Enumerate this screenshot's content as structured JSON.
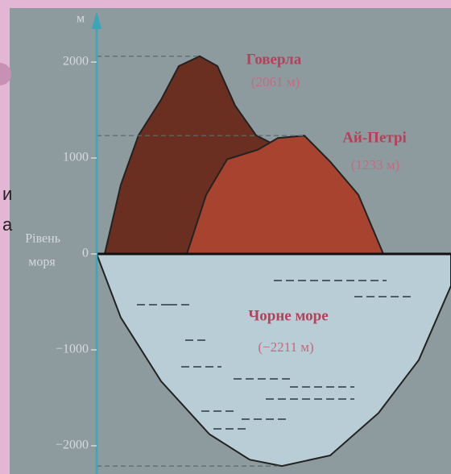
{
  "chart_data": {
    "type": "profile",
    "y_label": "м",
    "ylim": [
      -2300,
      2500
    ],
    "yticks": [
      {
        "value": -2000,
        "label": "−2000"
      },
      {
        "value": -1000,
        "label": "−1000"
      },
      0,
      1000,
      2000
    ],
    "sea_level_label": [
      "Рівень",
      "моря"
    ],
    "background_text": [
      "и",
      "а"
    ],
    "series": [
      {
        "name": "Говерла",
        "values": [
          2061
        ],
        "value_labels": [
          "(2061 м)"
        ],
        "color": "#6b2f22"
      },
      {
        "name": "Ай-Петрі",
        "values": [
          1233
        ],
        "value_labels": [
          "(1233 м)"
        ],
        "color": "#a8432f"
      },
      {
        "name": "Чорне море",
        "values": [
          -2211
        ],
        "value_labels": [
          "(−2211 м)"
        ],
        "color": "#b9cdd6"
      }
    ]
  }
}
